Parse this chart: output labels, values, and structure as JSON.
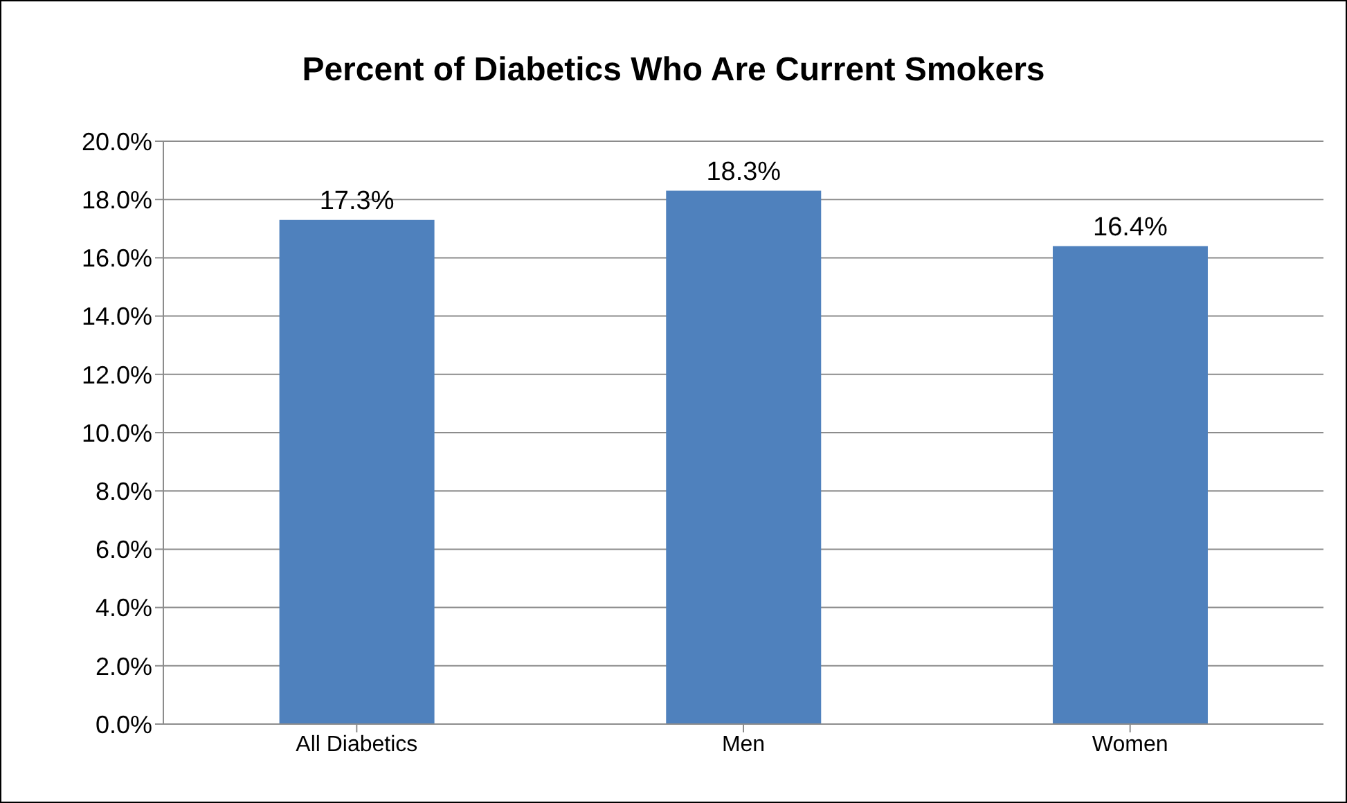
{
  "chart_data": {
    "type": "bar",
    "title": "Percent of Diabetics Who Are Current Smokers",
    "categories": [
      "All Diabetics",
      "Men",
      "Women"
    ],
    "values": [
      17.3,
      18.3,
      16.4
    ],
    "value_labels": [
      "17.3%",
      "18.3%",
      "16.4%"
    ],
    "color": "#4f81bd",
    "ylim": [
      0,
      20
    ],
    "yticks": [
      {
        "value": 0,
        "label": "0.0%"
      },
      {
        "value": 2,
        "label": "2.0%"
      },
      {
        "value": 4,
        "label": "4.0%"
      },
      {
        "value": 6,
        "label": "6.0%"
      },
      {
        "value": 8,
        "label": "8.0%"
      },
      {
        "value": 10,
        "label": "10.0%"
      },
      {
        "value": 12,
        "label": "12.0%"
      },
      {
        "value": 14,
        "label": "14.0%"
      },
      {
        "value": 16,
        "label": "16.0%"
      },
      {
        "value": 18,
        "label": "18.0%"
      },
      {
        "value": 20,
        "label": "20.0%"
      }
    ],
    "grid": "y"
  }
}
